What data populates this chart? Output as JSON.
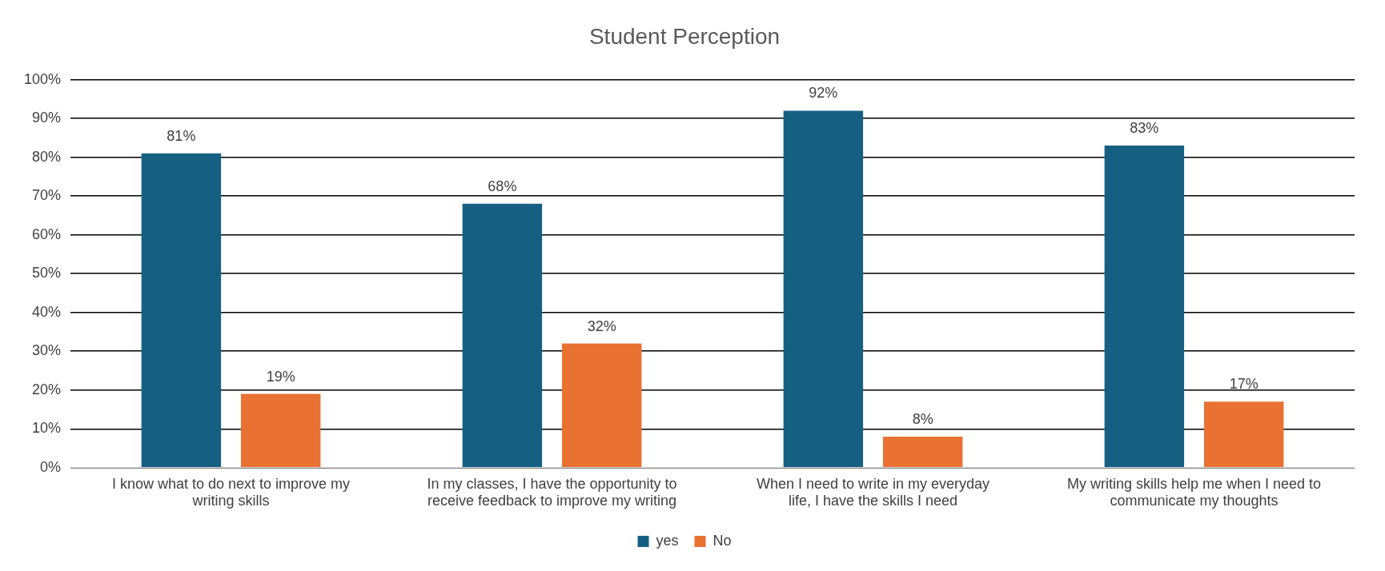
{
  "chart_data": {
    "type": "bar",
    "title": "Student Perception",
    "categories": [
      "I know what to do next to improve my writing skills",
      "In my classes, I have the opportunity to receive feedback to improve my writing",
      "When I need to write in my everyday life, I have the skills I need",
      "My writing skills help me when I need to communicate my thoughts"
    ],
    "series": [
      {
        "name": "yes",
        "color": "#156082",
        "values": [
          81,
          68,
          92,
          83
        ],
        "value_labels": [
          "81%",
          "68%",
          "92%",
          "83%"
        ]
      },
      {
        "name": "No",
        "color": "#e97132",
        "values": [
          19,
          32,
          8,
          17
        ],
        "value_labels": [
          "19%",
          "32%",
          "8%",
          "17%"
        ]
      }
    ],
    "ylim": [
      0,
      100
    ],
    "yticks": [
      {
        "value": 0,
        "label": "0%"
      },
      {
        "value": 10,
        "label": "10%"
      },
      {
        "value": 20,
        "label": "20%"
      },
      {
        "value": 30,
        "label": "30%"
      },
      {
        "value": 40,
        "label": "40%"
      },
      {
        "value": 50,
        "label": "50%"
      },
      {
        "value": 60,
        "label": "60%"
      },
      {
        "value": 70,
        "label": "70%"
      },
      {
        "value": 80,
        "label": "80%"
      },
      {
        "value": 90,
        "label": "90%"
      },
      {
        "value": 100,
        "label": "100%"
      }
    ],
    "grid": "y",
    "legend": "bottom"
  }
}
